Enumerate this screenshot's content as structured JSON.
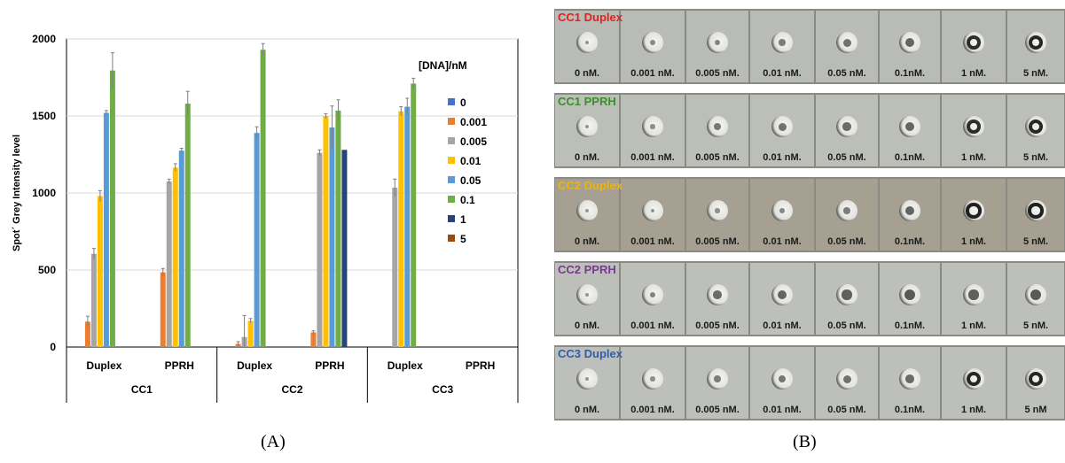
{
  "panel_labels": {
    "a": "(A)",
    "b": "(B)"
  },
  "chart_data": {
    "type": "bar",
    "ylabel": "Spot´ Grey Intensity level",
    "ylim": [
      0,
      2000
    ],
    "yticks": [
      0,
      500,
      1000,
      1500,
      2000
    ],
    "grid": true,
    "legend_title": "[DNA]/nM",
    "legend_position": "top-right",
    "groups": [
      "CC1",
      "CC2",
      "CC3"
    ],
    "categories": [
      "Duplex",
      "PPRH",
      "Duplex",
      "PPRH",
      "Duplex",
      "PPRH"
    ],
    "series": [
      {
        "name": "0",
        "color": "#4472c4",
        "values": [
          0,
          0,
          0,
          0,
          0,
          0
        ],
        "errors": [
          0,
          0,
          0,
          0,
          0,
          0
        ]
      },
      {
        "name": "0.001",
        "color": "#ed7d31",
        "values": [
          165,
          485,
          20,
          95,
          0,
          0
        ],
        "errors": [
          35,
          25,
          15,
          10,
          0,
          0
        ]
      },
      {
        "name": "0.005",
        "color": "#a5a5a5",
        "values": [
          605,
          1075,
          65,
          1260,
          1035,
          0
        ],
        "errors": [
          35,
          15,
          140,
          20,
          55,
          0
        ]
      },
      {
        "name": "0.01",
        "color": "#ffc000",
        "values": [
          980,
          1165,
          170,
          1500,
          1530,
          0
        ],
        "errors": [
          35,
          25,
          15,
          15,
          30,
          0
        ]
      },
      {
        "name": "0.05",
        "color": "#5b9bd5",
        "values": [
          1520,
          1275,
          1390,
          1425,
          1560,
          0
        ],
        "errors": [
          15,
          15,
          40,
          140,
          55,
          0
        ]
      },
      {
        "name": "0.1",
        "color": "#70ad47",
        "values": [
          1795,
          1580,
          1930,
          1535,
          1710,
          0
        ],
        "errors": [
          115,
          80,
          40,
          70,
          35,
          0
        ]
      },
      {
        "name": "1",
        "color": "#264478",
        "values": [
          0,
          0,
          0,
          1280,
          0,
          0
        ],
        "errors": [
          0,
          0,
          0,
          0,
          0,
          0
        ]
      },
      {
        "name": "5",
        "color": "#9e480e",
        "values": [
          0,
          0,
          0,
          0,
          0,
          0
        ],
        "errors": [
          0,
          0,
          0,
          0,
          0,
          0
        ]
      }
    ]
  },
  "strips": [
    {
      "title": "CC1 Duplex",
      "title_color": "#e02020",
      "bg": "#b9bcb6",
      "labels": [
        "0 nM.",
        "0.001 nM.",
        "0.005 nM.",
        "0.01 nM.",
        "0.05 nM.",
        "0.1nM.",
        "1 nM.",
        "5 nM."
      ],
      "spots": [
        0.1,
        0.2,
        0.25,
        0.3,
        0.4,
        0.5,
        0.85,
        0.9
      ]
    },
    {
      "title": "CC1 PPRH",
      "title_color": "#3a8f2a",
      "bg": "#bbbfb8",
      "labels": [
        "0 nM.",
        "0.001 nM.",
        "0.005 nM.",
        "0.01 nM.",
        "0.05 nM.",
        "0.1nM.",
        "1 nM.",
        "5 nM."
      ],
      "spots": [
        0.1,
        0.15,
        0.35,
        0.4,
        0.45,
        0.5,
        0.85,
        0.9
      ]
    },
    {
      "title": "CC2 Duplex",
      "title_color": "#f0b400",
      "bg": "#a6a093",
      "labels": [
        "0 nM.",
        "0.001 nM.",
        "0.005 nM.",
        "0.01 nM.",
        "0.05 nM.",
        "0.1nM.",
        "1 nM.",
        "5 nM."
      ],
      "spots": [
        0.05,
        0.1,
        0.15,
        0.2,
        0.3,
        0.5,
        0.95,
        0.95
      ]
    },
    {
      "title": "CC2 PPRH",
      "title_color": "#7a3a8c",
      "bg": "#bdbfbb",
      "labels": [
        "0 nM.",
        "0.001 nM.",
        "0.005 nM.",
        "0.01 nM.",
        "0.05 nM.",
        "0.1nM.",
        "1 nM.",
        "5 nM."
      ],
      "spots": [
        0.1,
        0.25,
        0.45,
        0.5,
        0.55,
        0.6,
        0.55,
        0.6
      ]
    },
    {
      "title": "CC3 Duplex",
      "title_color": "#2e5fa8",
      "bg": "#bcbfbb",
      "labels": [
        "0 nM.",
        "0.001 nM.",
        "0.005 nM.",
        "0.01 nM.",
        "0.05 nM.",
        "0.1nM.",
        "1 nM.",
        "5 nM"
      ],
      "spots": [
        0.1,
        0.15,
        0.3,
        0.35,
        0.4,
        0.45,
        0.9,
        0.9
      ]
    }
  ]
}
